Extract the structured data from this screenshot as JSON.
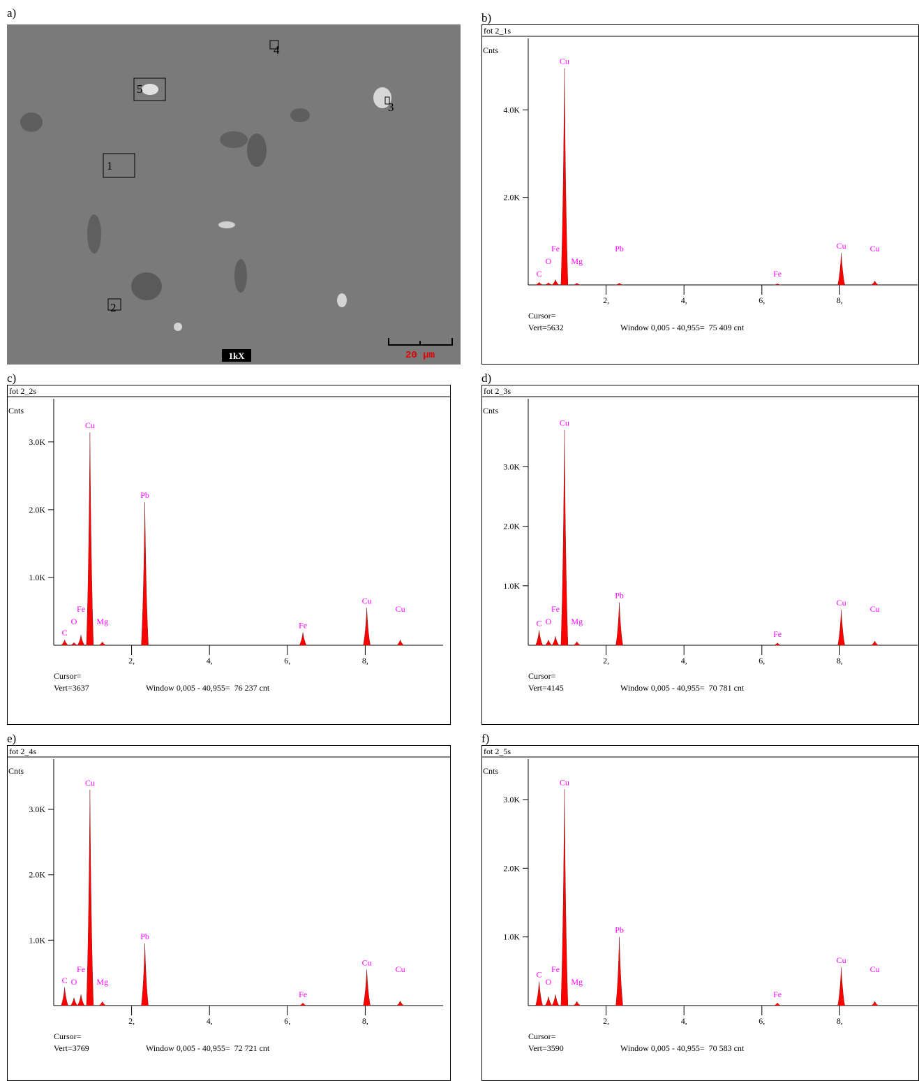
{
  "image_panel": {
    "panel": "a)",
    "markers": [
      "1",
      "2",
      "3",
      "4",
      "5"
    ],
    "magnification": "1kX",
    "scale_bar": "20 µm"
  },
  "chart_data": [
    {
      "type": "spectrum",
      "panel": "b)",
      "title": "fot 2_1s",
      "y_label": "Cnts",
      "cursor": "Cursor=",
      "vert": "Vert=5632",
      "window": "Window 0,005 - 40,955=  75 409 cnt",
      "color": "#ff0000",
      "label_color": "#ff00ff",
      "x": [
        0.28,
        0.52,
        0.7,
        0.93,
        1.25,
        2.34,
        6.4,
        8.04,
        8.9
      ],
      "peak_names": [
        "C",
        "O",
        "Fe",
        "Cu",
        "Mg",
        "Pb",
        "Fe",
        "Cu",
        "Cu"
      ],
      "values": [
        60,
        50,
        120,
        4950,
        40,
        40,
        25,
        730,
        90
      ],
      "xlim": [
        0,
        10
      ],
      "xticks": [
        {
          "value": 2,
          "label": "2,"
        },
        {
          "value": 4,
          "label": "4,"
        },
        {
          "value": 6,
          "label": "6,"
        },
        {
          "value": 8,
          "label": "8,"
        }
      ],
      "ylim": [
        0,
        5632
      ],
      "yticks": [
        {
          "value": 2000,
          "label": "2.0K"
        },
        {
          "value": 4000,
          "label": "4.0K"
        }
      ]
    },
    {
      "type": "spectrum",
      "panel": "c)",
      "title": "fot 2_2s",
      "y_label": "Cnts",
      "cursor": "Cursor=",
      "vert": "Vert=3637",
      "window": "Window 0,005 - 40,955=  76 237 cnt",
      "color": "#ff0000",
      "label_color": "#ff00ff",
      "x": [
        0.28,
        0.52,
        0.7,
        0.93,
        1.25,
        2.34,
        6.4,
        8.04,
        8.9
      ],
      "peak_names": [
        "C",
        "O",
        "Fe",
        "Cu",
        "Mg",
        "Pb",
        "Fe",
        "Cu",
        "Cu"
      ],
      "values": [
        80,
        40,
        150,
        3140,
        50,
        2110,
        190,
        550,
        80
      ],
      "xlim": [
        0,
        10
      ],
      "xticks": [
        {
          "value": 2,
          "label": "2,"
        },
        {
          "value": 4,
          "label": "4,"
        },
        {
          "value": 6,
          "label": "6,"
        },
        {
          "value": 8,
          "label": "8,"
        }
      ],
      "ylim": [
        0,
        3637
      ],
      "yticks": [
        {
          "value": 1000,
          "label": "1.0K"
        },
        {
          "value": 2000,
          "label": "2.0K"
        },
        {
          "value": 3000,
          "label": "3.0K"
        }
      ]
    },
    {
      "type": "spectrum",
      "panel": "d)",
      "title": "fot 2_3s",
      "y_label": "Cnts",
      "cursor": "Cursor=",
      "vert": "Vert=4145",
      "window": "Window 0,005 - 40,955=  70 781 cnt",
      "color": "#ff0000",
      "label_color": "#ff00ff",
      "x": [
        0.28,
        0.52,
        0.7,
        0.93,
        1.25,
        2.34,
        6.4,
        8.04,
        8.9
      ],
      "peak_names": [
        "C",
        "O",
        "Fe",
        "Cu",
        "Mg",
        "Pb",
        "Fe",
        "Cu",
        "Cu"
      ],
      "values": [
        250,
        90,
        150,
        3620,
        60,
        720,
        40,
        600,
        70
      ],
      "xlim": [
        0,
        10
      ],
      "xticks": [
        {
          "value": 2,
          "label": "2,"
        },
        {
          "value": 4,
          "label": "4,"
        },
        {
          "value": 6,
          "label": "6,"
        },
        {
          "value": 8,
          "label": "8,"
        }
      ],
      "ylim": [
        0,
        4145
      ],
      "yticks": [
        {
          "value": 1000,
          "label": "1.0K"
        },
        {
          "value": 2000,
          "label": "2.0K"
        },
        {
          "value": 3000,
          "label": "3.0K"
        }
      ]
    },
    {
      "type": "spectrum",
      "panel": "e)",
      "title": "fot 2_4s",
      "y_label": "Cnts",
      "cursor": "Cursor=",
      "vert": "Vert=3769",
      "window": "Window 0,005 - 40,955=  72 721 cnt",
      "color": "#ff0000",
      "label_color": "#ff00ff",
      "x": [
        0.28,
        0.52,
        0.7,
        0.93,
        1.25,
        2.34,
        6.4,
        8.04,
        8.9
      ],
      "peak_names": [
        "C",
        "O",
        "Fe",
        "Cu",
        "Mg",
        "Pb",
        "Fe",
        "Cu",
        "Cu"
      ],
      "values": [
        280,
        120,
        170,
        3300,
        60,
        950,
        40,
        550,
        70
      ],
      "xlim": [
        0,
        10
      ],
      "xticks": [
        {
          "value": 2,
          "label": "2,"
        },
        {
          "value": 4,
          "label": "4,"
        },
        {
          "value": 6,
          "label": "6,"
        },
        {
          "value": 8,
          "label": "8,"
        }
      ],
      "ylim": [
        0,
        3769
      ],
      "yticks": [
        {
          "value": 1000,
          "label": "1.0K"
        },
        {
          "value": 2000,
          "label": "2.0K"
        },
        {
          "value": 3000,
          "label": "3.0K"
        }
      ]
    },
    {
      "type": "spectrum",
      "panel": "f)",
      "title": "fot 2_5s",
      "y_label": "Cnts",
      "cursor": "Cursor=",
      "vert": "Vert=3590",
      "window": "Window 0,005 - 40,955=  70 583 cnt",
      "color": "#ff0000",
      "label_color": "#ff00ff",
      "x": [
        0.28,
        0.52,
        0.7,
        0.93,
        1.25,
        2.34,
        6.4,
        8.04,
        8.9
      ],
      "peak_names": [
        "C",
        "O",
        "Fe",
        "Cu",
        "Mg",
        "Pb",
        "Fe",
        "Cu",
        "Cu"
      ],
      "values": [
        350,
        130,
        160,
        3150,
        60,
        1000,
        40,
        560,
        60
      ],
      "xlim": [
        0,
        10
      ],
      "xticks": [
        {
          "value": 2,
          "label": "2,"
        },
        {
          "value": 4,
          "label": "4,"
        },
        {
          "value": 6,
          "label": "6,"
        },
        {
          "value": 8,
          "label": "8,"
        }
      ],
      "ylim": [
        0,
        3590
      ],
      "yticks": [
        {
          "value": 1000,
          "label": "1.0K"
        },
        {
          "value": 2000,
          "label": "2.0K"
        },
        {
          "value": 3000,
          "label": "3.0K"
        }
      ]
    }
  ]
}
